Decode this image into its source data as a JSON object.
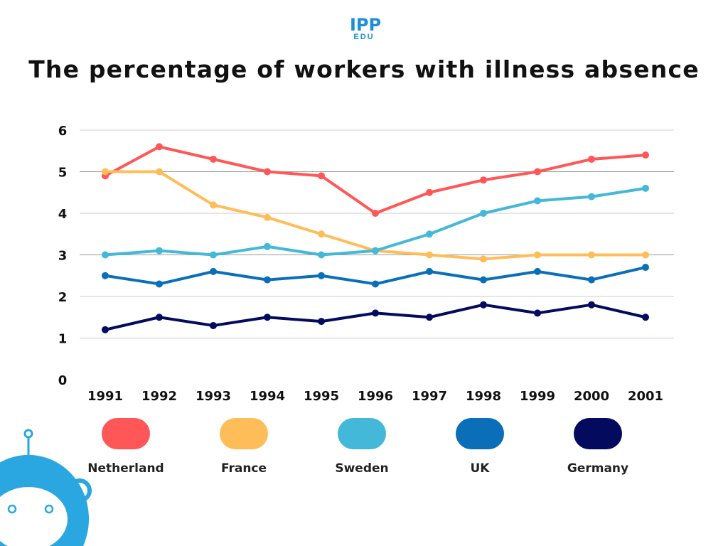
{
  "logo": {
    "top": "IPP",
    "bottom": "EDU"
  },
  "chart_data": {
    "type": "line",
    "title": "The percentage of workers with illness absence",
    "xlabel": "",
    "ylabel": "",
    "x": [
      "1991",
      "1992",
      "1993",
      "1994",
      "1995",
      "1996",
      "1997",
      "1998",
      "1999",
      "2000",
      "2001"
    ],
    "ylim": [
      0,
      6
    ],
    "yticks": [
      "0",
      "1",
      "2",
      "3",
      "4",
      "5",
      "6"
    ],
    "grid": true,
    "legend_position": "bottom",
    "series": [
      {
        "name": "Netherland",
        "color": "#ff5757",
        "values": [
          4.9,
          5.6,
          5.3,
          5.0,
          4.9,
          4.0,
          4.5,
          4.8,
          5.0,
          5.3,
          5.4
        ]
      },
      {
        "name": "France",
        "color": "#ffbd59",
        "values": [
          5.0,
          5.0,
          4.2,
          3.9,
          3.5,
          3.1,
          3.0,
          2.9,
          3.0,
          3.0,
          3.0
        ]
      },
      {
        "name": "Sweden",
        "color": "#44b8d8",
        "values": [
          3.0,
          3.1,
          3.0,
          3.2,
          3.0,
          3.1,
          3.5,
          4.0,
          4.3,
          4.4,
          4.6
        ]
      },
      {
        "name": "UK",
        "color": "#0a6fb8",
        "values": [
          2.5,
          2.3,
          2.6,
          2.4,
          2.5,
          2.3,
          2.6,
          2.4,
          2.6,
          2.4,
          2.7
        ]
      },
      {
        "name": "Germany",
        "color": "#040a5e",
        "values": [
          1.2,
          1.5,
          1.3,
          1.5,
          1.4,
          1.6,
          1.5,
          1.8,
          1.6,
          1.8,
          1.5
        ]
      }
    ]
  }
}
